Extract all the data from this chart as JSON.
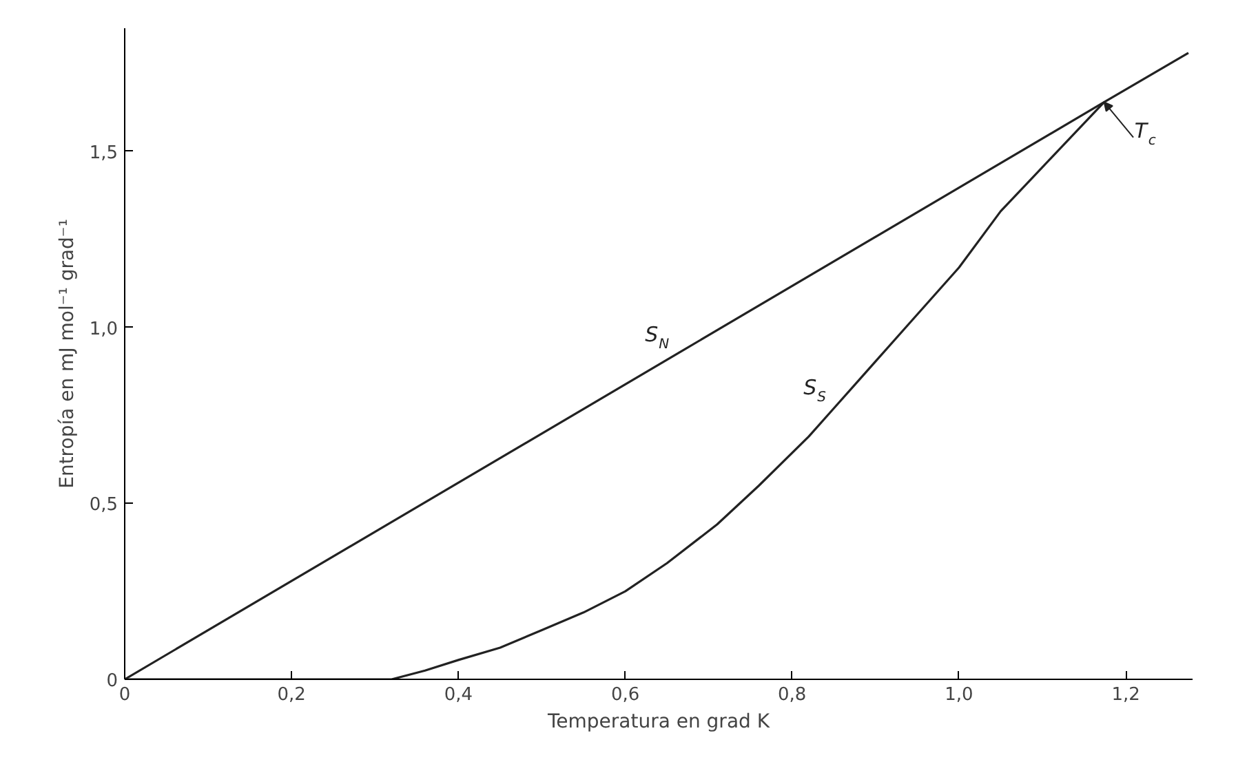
{
  "chart_data": {
    "type": "line",
    "xlabel": "Temperatura en grad K",
    "ylabel": "Entropía en mJ mol⁻¹ grad⁻¹",
    "xlim": [
      0,
      1.28
    ],
    "ylim": [
      0,
      1.85
    ],
    "xticks": [
      0,
      {
        "value": 0.2,
        "label": "0,2"
      },
      {
        "value": 0.4,
        "label": "0,4"
      },
      {
        "value": 0.6,
        "label": "0,6"
      },
      {
        "value": 0.8,
        "label": "0,8"
      },
      {
        "value": 1.0,
        "label": "1,0"
      },
      {
        "value": 1.2,
        "label": "1,2"
      }
    ],
    "yticks": [
      0,
      {
        "value": 0.5,
        "label": "0,5"
      },
      {
        "value": 1.0,
        "label": "1,0"
      },
      {
        "value": 1.5,
        "label": "1,5"
      }
    ],
    "grid": false,
    "marker": "none",
    "line_style": "solid",
    "series": [
      {
        "color": "#222222",
        "x": [
          0,
          1.174,
          1.275
        ],
        "values": [
          0,
          1.64,
          1.78
        ]
      },
      {
        "color": "#222222",
        "x": [
          0,
          0.2,
          0.32,
          0.36,
          0.4,
          0.45,
          0.5,
          0.55,
          0.6,
          0.65,
          0.71,
          0.76,
          0.82,
          0.85,
          0.88,
          0.94,
          1.0,
          1.05,
          1.11,
          1.174
        ],
        "values": [
          0,
          0,
          0.0,
          0.025,
          0.055,
          0.09,
          0.14,
          0.19,
          0.25,
          0.33,
          0.44,
          0.55,
          0.69,
          0.77,
          0.85,
          1.01,
          1.17,
          1.33,
          1.48,
          1.64
        ]
      }
    ],
    "annotations": [
      {
        "text": "S$_{N}$",
        "x": 0.66,
        "y": 0.922
      },
      {
        "text": "S$_{S}$",
        "x": 0.85,
        "y": 0.77
      },
      {
        "text": "T$_{c}$",
        "x": 1.174,
        "y": 1.64
      }
    ]
  }
}
